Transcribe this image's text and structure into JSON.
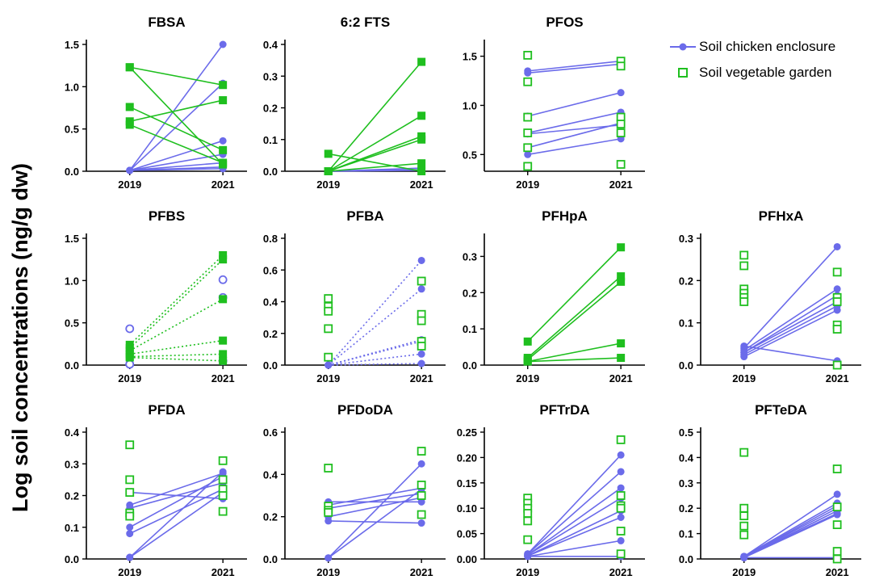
{
  "figure": {
    "ylabel": "Log soil concentrations (ng/g dw)",
    "legend": [
      {
        "label": "Soil chicken enclosure",
        "marker": "filled-circle-line",
        "color": "#6b6bea"
      },
      {
        "label": "Soil vegetable garden",
        "marker": "open-square",
        "color": "#1fbf1f"
      }
    ]
  },
  "chart_data": [
    {
      "type": "scatter",
      "title": "FBSA",
      "categories": [
        "2019",
        "2021"
      ],
      "ylim": [
        0,
        1.5
      ],
      "yticks": [
        "0.0",
        "0.5",
        "1.0",
        "1.5"
      ],
      "series": [
        {
          "name": "Soil chicken enclosure",
          "style": "filled-circle-line",
          "pairs": [
            [
              0.01,
              1.5
            ],
            [
              0.01,
              1.04
            ],
            [
              0.01,
              0.36
            ],
            [
              0.01,
              0.2
            ],
            [
              0.01,
              0.1
            ],
            [
              0.01,
              0.05
            ],
            [
              0.01,
              0.03
            ]
          ]
        },
        {
          "name": "Soil vegetable garden",
          "style": "filled-square-line",
          "pairs": [
            [
              1.23,
              1.02
            ],
            [
              1.23,
              0.08
            ],
            [
              0.76,
              0.25
            ],
            [
              0.59,
              0.84
            ],
            [
              0.55,
              0.1
            ]
          ]
        }
      ]
    },
    {
      "type": "scatter",
      "title": "6:2 FTS",
      "categories": [
        "2019",
        "2021"
      ],
      "ylim": [
        0,
        0.4
      ],
      "yticks": [
        "0.0",
        "0.1",
        "0.2",
        "0.3",
        "0.4"
      ],
      "series": [
        {
          "name": "Soil chicken enclosure",
          "style": "filled-circle-line",
          "pairs": [
            [
              0.0,
              0.01
            ],
            [
              0.0,
              0.005
            ],
            [
              0.0,
              0.003
            ]
          ]
        },
        {
          "name": "Soil vegetable garden",
          "style": "filled-square-line",
          "pairs": [
            [
              0.0,
              0.345
            ],
            [
              0.0,
              0.175
            ],
            [
              0.0,
              0.11
            ],
            [
              0.0,
              0.1
            ],
            [
              0.0,
              0.025
            ],
            [
              0.055,
              0.0
            ]
          ]
        }
      ]
    },
    {
      "type": "scatter",
      "title": "PFOS",
      "categories": [
        "2019",
        "2021"
      ],
      "ylim": [
        0.33,
        1.62
      ],
      "yticks": [
        "0.5",
        "1.0",
        "1.5"
      ],
      "series": [
        {
          "name": "Soil chicken enclosure",
          "style": "filled-circle-line",
          "pairs": [
            [
              1.35,
              1.45
            ],
            [
              0.89,
              1.13
            ],
            [
              0.72,
              0.93
            ],
            [
              0.71,
              0.8
            ],
            [
              0.5,
              0.66
            ],
            [
              1.33,
              1.42
            ],
            [
              0.57,
              0.82
            ]
          ]
        },
        {
          "name": "Soil vegetable garden",
          "style": "open-square",
          "pairs": [
            [
              1.51,
              1.45
            ],
            [
              1.24,
              1.4
            ],
            [
              0.88,
              0.88
            ],
            [
              0.72,
              0.81
            ],
            [
              0.57,
              0.72
            ],
            [
              0.38,
              0.4
            ]
          ]
        }
      ]
    },
    {
      "type": "scatter",
      "title": "PFBS",
      "categories": [
        "2019",
        "2021"
      ],
      "ylim": [
        0,
        1.5
      ],
      "yticks": [
        "0.0",
        "0.5",
        "1.0",
        "1.5"
      ],
      "series": [
        {
          "name": "Soil chicken enclosure",
          "style": "open-circle",
          "pairs": [
            [
              0.43,
              1.01
            ],
            [
              0.01,
              0.8
            ],
            [
              0.01,
              0.05
            ]
          ]
        },
        {
          "name": "Soil vegetable garden",
          "style": "filled-square-dotted",
          "pairs": [
            [
              0.24,
              1.3
            ],
            [
              0.2,
              1.25
            ],
            [
              0.17,
              0.78
            ],
            [
              0.13,
              0.29
            ],
            [
              0.1,
              0.13
            ],
            [
              0.09,
              0.05
            ]
          ]
        }
      ]
    },
    {
      "type": "scatter",
      "title": "PFBA",
      "categories": [
        "2019",
        "2021"
      ],
      "ylim": [
        0,
        0.8
      ],
      "yticks": [
        "0.0",
        "0.2",
        "0.4",
        "0.6",
        "0.8"
      ],
      "series": [
        {
          "name": "Soil chicken enclosure",
          "style": "filled-circle-dotted",
          "pairs": [
            [
              0.0,
              0.66
            ],
            [
              0.0,
              0.48
            ],
            [
              0.0,
              0.16
            ],
            [
              0.0,
              0.15
            ],
            [
              0.0,
              0.07
            ],
            [
              0.0,
              0.01
            ]
          ]
        },
        {
          "name": "Soil vegetable garden",
          "style": "open-square",
          "pairs": [
            [
              0.42,
              0.53
            ],
            [
              0.37,
              0.32
            ],
            [
              0.34,
              0.28
            ],
            [
              0.23,
              0.15
            ],
            [
              0.05,
              0.12
            ]
          ]
        }
      ]
    },
    {
      "type": "scatter",
      "title": "PFHpA",
      "categories": [
        "2019",
        "2021"
      ],
      "ylim": [
        0,
        0.35
      ],
      "yticks": [
        "0.0",
        "0.1",
        "0.2",
        "0.3"
      ],
      "series": [
        {
          "name": "Soil vegetable garden",
          "style": "filled-square-line",
          "pairs": [
            [
              0.065,
              0.325
            ],
            [
              0.02,
              0.245
            ],
            [
              0.015,
              0.23
            ],
            [
              0.01,
              0.06
            ],
            [
              0.01,
              0.02
            ]
          ]
        }
      ]
    },
    {
      "type": "scatter",
      "title": "PFHxA",
      "categories": [
        "2019",
        "2021"
      ],
      "ylim": [
        0,
        0.3
      ],
      "yticks": [
        "0.0",
        "0.1",
        "0.2",
        "0.3"
      ],
      "series": [
        {
          "name": "Soil chicken enclosure",
          "style": "filled-circle-line",
          "pairs": [
            [
              0.045,
              0.01
            ],
            [
              0.04,
              0.28
            ],
            [
              0.035,
              0.18
            ],
            [
              0.03,
              0.165
            ],
            [
              0.03,
              0.15
            ],
            [
              0.025,
              0.14
            ],
            [
              0.02,
              0.13
            ]
          ]
        },
        {
          "name": "Soil vegetable garden",
          "style": "open-square",
          "pairs": [
            [
              0.26,
              0.22
            ],
            [
              0.235,
              0.16
            ],
            [
              0.18,
              0.15
            ],
            [
              0.17,
              0.095
            ],
            [
              0.16,
              0.085
            ],
            [
              0.15,
              0.0
            ]
          ]
        }
      ]
    },
    {
      "type": "scatter",
      "title": "PFDA",
      "categories": [
        "2019",
        "2021"
      ],
      "ylim": [
        0,
        0.4
      ],
      "yticks": [
        "0.0",
        "0.1",
        "0.2",
        "0.3",
        "0.4"
      ],
      "series": [
        {
          "name": "Soil chicken enclosure",
          "style": "filled-circle-line",
          "pairs": [
            [
              0.21,
              0.19
            ],
            [
              0.17,
              0.27
            ],
            [
              0.16,
              0.24
            ],
            [
              0.1,
              0.26
            ],
            [
              0.08,
              0.22
            ],
            [
              0.005,
              0.275
            ],
            [
              0.005,
              0.21
            ]
          ]
        },
        {
          "name": "Soil vegetable garden",
          "style": "open-square",
          "pairs": [
            [
              0.36,
              0.31
            ],
            [
              0.25,
              0.25
            ],
            [
              0.21,
              0.22
            ],
            [
              0.145,
              0.2
            ],
            [
              0.135,
              0.15
            ]
          ]
        }
      ]
    },
    {
      "type": "scatter",
      "title": "PFDoDA",
      "categories": [
        "2019",
        "2021"
      ],
      "ylim": [
        0,
        0.6
      ],
      "yticks": [
        "0.0",
        "0.2",
        "0.4",
        "0.6"
      ],
      "series": [
        {
          "name": "Soil chicken enclosure",
          "style": "filled-circle-line",
          "pairs": [
            [
              0.27,
              0.27
            ],
            [
              0.255,
              0.335
            ],
            [
              0.24,
              0.31
            ],
            [
              0.2,
              0.29
            ],
            [
              0.18,
              0.17
            ],
            [
              0.005,
              0.45
            ],
            [
              0.005,
              0.33
            ]
          ]
        },
        {
          "name": "Soil vegetable garden",
          "style": "open-square",
          "pairs": [
            [
              0.43,
              0.51
            ],
            [
              0.25,
              0.35
            ],
            [
              0.23,
              0.3
            ],
            [
              0.22,
              0.21
            ]
          ]
        }
      ]
    },
    {
      "type": "scatter",
      "title": "PFTrDA",
      "categories": [
        "2019",
        "2021"
      ],
      "ylim": [
        0,
        0.25
      ],
      "yticks": [
        "0.00",
        "0.05",
        "0.10",
        "0.15",
        "0.20",
        "0.25"
      ],
      "series": [
        {
          "name": "Soil chicken enclosure",
          "style": "filled-circle-line",
          "pairs": [
            [
              0.01,
              0.205
            ],
            [
              0.01,
              0.172
            ],
            [
              0.008,
              0.14
            ],
            [
              0.008,
              0.12
            ],
            [
              0.006,
              0.095
            ],
            [
              0.006,
              0.082
            ],
            [
              0.005,
              0.036
            ],
            [
              0.005,
              0.005
            ]
          ]
        },
        {
          "name": "Soil vegetable garden",
          "style": "open-square",
          "pairs": [
            [
              0.12,
              0.235
            ],
            [
              0.11,
              0.125
            ],
            [
              0.1,
              0.105
            ],
            [
              0.09,
              0.1
            ],
            [
              0.075,
              0.055
            ],
            [
              0.038,
              0.01
            ]
          ]
        }
      ]
    },
    {
      "type": "scatter",
      "title": "PFTeDA",
      "categories": [
        "2019",
        "2021"
      ],
      "ylim": [
        0,
        0.5
      ],
      "yticks": [
        "0.0",
        "0.1",
        "0.2",
        "0.3",
        "0.4",
        "0.5"
      ],
      "series": [
        {
          "name": "Soil chicken enclosure",
          "style": "filled-circle-line",
          "pairs": [
            [
              0.01,
              0.255
            ],
            [
              0.01,
              0.22
            ],
            [
              0.008,
              0.21
            ],
            [
              0.008,
              0.2
            ],
            [
              0.006,
              0.19
            ],
            [
              0.006,
              0.18
            ],
            [
              0.005,
              0.175
            ],
            [
              0.005,
              0.005
            ]
          ]
        },
        {
          "name": "Soil vegetable garden",
          "style": "open-square",
          "pairs": [
            [
              0.42,
              0.355
            ],
            [
              0.2,
              0.205
            ],
            [
              0.17,
              0.135
            ],
            [
              0.13,
              0.03
            ],
            [
              0.095,
              0.0
            ]
          ]
        }
      ]
    }
  ]
}
